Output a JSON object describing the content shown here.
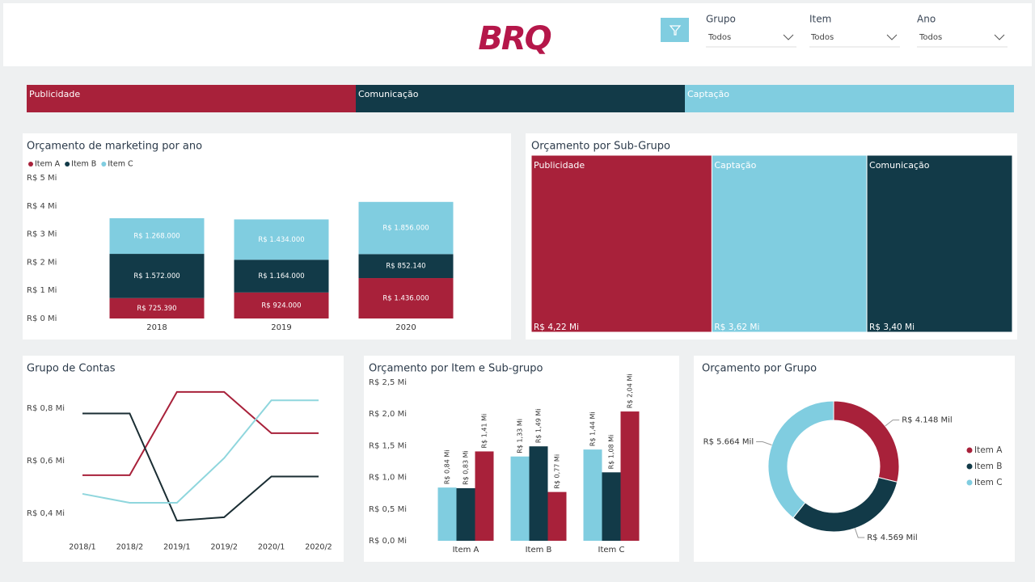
{
  "header": {
    "logo": "BRQ",
    "filters": [
      {
        "label": "Grupo",
        "value": "Todos"
      },
      {
        "label": "Item",
        "value": "Todos"
      },
      {
        "label": "Ano",
        "value": "Todos"
      }
    ],
    "tabs": [
      {
        "label": "Publicidade",
        "color": "#a8213a"
      },
      {
        "label": "Comunicação",
        "color": "#123a48"
      },
      {
        "label": "Captação",
        "color": "#80cde0"
      }
    ]
  },
  "chart_data": [
    {
      "type": "stacked_bar",
      "title": "Orçamento de marketing por ano",
      "categories": [
        "2018",
        "2019",
        "2020"
      ],
      "series": [
        {
          "name": "Item A",
          "color": "#a8213a",
          "values": [
            725390,
            924000,
            1436000
          ],
          "value_labels": [
            "R$ 725.390",
            "R$ 924.000",
            "R$ 1.436.000"
          ]
        },
        {
          "name": "Item B",
          "color": "#123a48",
          "values": [
            1572000,
            1164000,
            852140
          ],
          "value_labels": [
            "R$ 1.572.000",
            "R$ 1.164.000",
            "R$ 852.140"
          ]
        },
        {
          "name": "Item C",
          "color": "#80cde0",
          "values": [
            1268000,
            1434000,
            1856000
          ],
          "value_labels": [
            "R$ 1.268.000",
            "R$ 1.434.000",
            "R$ 1.856.000"
          ]
        }
      ],
      "ylim": [
        0,
        5000000
      ],
      "yticks": [
        {
          "value": 0,
          "label": "R$ 0 Mi"
        },
        {
          "value": 1000000,
          "label": "R$ 1 Mi"
        },
        {
          "value": 2000000,
          "label": "R$ 2 Mi"
        },
        {
          "value": 3000000,
          "label": "R$ 3 Mi"
        },
        {
          "value": 4000000,
          "label": "R$ 4 Mi"
        },
        {
          "value": 5000000,
          "label": "R$ 5 Mi"
        }
      ],
      "legend": "top-left"
    },
    {
      "type": "treemap",
      "title": "Orçamento por Sub-Grupo",
      "categories": [
        "Publicidade",
        "Captação",
        "Comunicação"
      ],
      "values": [
        4220000,
        3620000,
        3400000
      ],
      "value_labels": [
        "R$ 4,22 Mi",
        "R$ 3,62 Mi",
        "R$ 3,40 Mi"
      ],
      "colors": [
        "#a8213a",
        "#80cde0",
        "#123a48"
      ]
    },
    {
      "type": "line",
      "title": "Grupo de Contas",
      "categories": [
        "2018/1",
        "2018/2",
        "2019/1",
        "2019/2",
        "2020/1",
        "2020/2"
      ],
      "series": [
        {
          "color": "#a8213a",
          "values": [
            545000,
            545000,
            862000,
            862000,
            705000,
            705000
          ]
        },
        {
          "color": "#1a2d33",
          "values": [
            780000,
            780000,
            372000,
            385000,
            540000,
            540000
          ]
        },
        {
          "color": "#8fd6dd",
          "values": [
            474000,
            440000,
            440000,
            610000,
            830000,
            830000
          ]
        }
      ],
      "ylim": [
        320000,
        880000
      ],
      "yticks": [
        {
          "value": 400000,
          "label": "R$ 0,4 Mi"
        },
        {
          "value": 600000,
          "label": "R$ 0,6 Mi"
        },
        {
          "value": 800000,
          "label": "R$ 0,8 Mi"
        }
      ]
    },
    {
      "type": "grouped_bar",
      "title": "Orçamento por Item e Sub-grupo",
      "categories": [
        "Item A",
        "Item B",
        "Item C"
      ],
      "series": [
        {
          "color": "#80cde0",
          "values": [
            840000,
            1330000,
            1440000
          ],
          "value_labels": [
            "R$ 0,84 Mi",
            "R$ 1,33 Mi",
            "R$ 1,44 Mi"
          ]
        },
        {
          "color": "#123a48",
          "values": [
            830000,
            1490000,
            1080000
          ],
          "value_labels": [
            "R$ 0,83 Mi",
            "R$ 1,49 Mi",
            "R$ 1,08 Mi"
          ]
        },
        {
          "color": "#a8213a",
          "values": [
            1410000,
            770000,
            2040000
          ],
          "value_labels": [
            "R$ 1,41 Mi",
            "R$ 0,77 Mi",
            "R$ 2,04 Mi"
          ]
        }
      ],
      "ylim": [
        0,
        2500000
      ],
      "yticks": [
        {
          "value": 0,
          "label": "R$ 0,0 Mi"
        },
        {
          "value": 500000,
          "label": "R$ 0,5 Mi"
        },
        {
          "value": 1000000,
          "label": "R$ 1,0 Mi"
        },
        {
          "value": 1500000,
          "label": "R$ 1,5 Mi"
        },
        {
          "value": 2000000,
          "label": "R$ 2,0 Mi"
        },
        {
          "value": 2500000,
          "label": "R$ 2,5 Mi"
        }
      ]
    },
    {
      "type": "donut",
      "title": "Orçamento por Grupo",
      "categories": [
        "Item A",
        "Item B",
        "Item C"
      ],
      "values": [
        4148000,
        4569000,
        5664000
      ],
      "value_labels": [
        "R$ 4.148 Mil",
        "R$ 4.569 Mil",
        "R$ 5.664 Mil"
      ],
      "colors": [
        "#a8213a",
        "#123a48",
        "#80cde0"
      ],
      "legend": "right"
    }
  ]
}
